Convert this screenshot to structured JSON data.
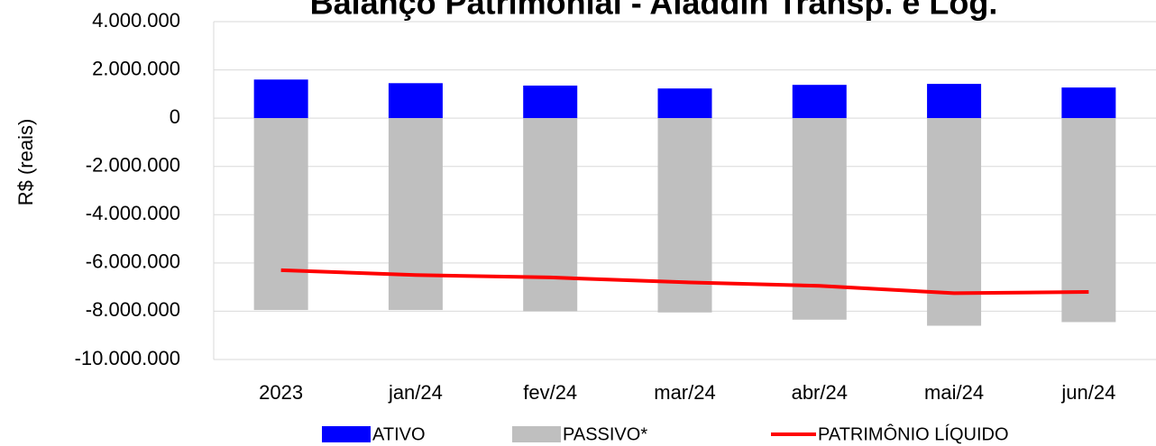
{
  "chart_data": {
    "type": "bar_line",
    "title": "Balanço Patrimonial - Aladdin Transp. e Log.",
    "y_label": "R$ (reais)",
    "categories": [
      "2023",
      "jan/24",
      "fev/24",
      "mar/24",
      "abr/24",
      "mai/24",
      "jun/24"
    ],
    "series": [
      {
        "name": "ATIVO",
        "kind": "bar",
        "color": "#0000ff",
        "values": [
          1600000,
          1450000,
          1350000,
          1230000,
          1380000,
          1420000,
          1270000
        ]
      },
      {
        "name": "PASSIVO*",
        "kind": "bar",
        "color": "#bfbfbf",
        "values": [
          -7950000,
          -7950000,
          -8000000,
          -8050000,
          -8350000,
          -8600000,
          -8450000
        ]
      },
      {
        "name": "PATRIMÔNIO LÍQUIDO",
        "kind": "line",
        "color": "#ff0000",
        "values": [
          -6300000,
          -6500000,
          -6600000,
          -6800000,
          -6950000,
          -7250000,
          -7200000
        ]
      }
    ],
    "ylim": [
      -10000000,
      4000000
    ],
    "yticks": [
      {
        "value": 4000000,
        "label": "4.000.000"
      },
      {
        "value": 2000000,
        "label": "2.000.000"
      },
      0,
      {
        "value": -2000000,
        "label": "-2.000.000"
      },
      {
        "value": -4000000,
        "label": "-4.000.000"
      },
      {
        "value": -6000000,
        "label": "-6.000.000"
      },
      {
        "value": -8000000,
        "label": "-8.000.000"
      },
      {
        "value": -10000000,
        "label": "-10.000.000"
      }
    ],
    "negative_tick_color": "#ff0000",
    "grid": true,
    "legend": "bottom"
  }
}
